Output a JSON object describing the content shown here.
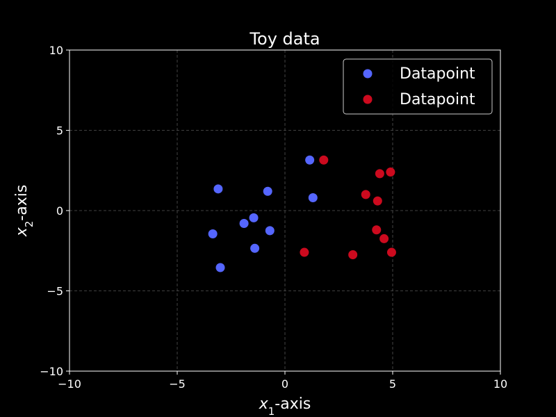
{
  "chart_data": {
    "type": "scatter",
    "title": "Toy data",
    "xlabel": {
      "base": "x",
      "sub": "1",
      "rest": "-axis"
    },
    "ylabel": {
      "base": "x",
      "sub": "2",
      "rest": "-axis"
    },
    "xlim": [
      -10,
      10
    ],
    "ylim": [
      -10,
      10
    ],
    "xticks": [
      -10,
      -5,
      0,
      5,
      10
    ],
    "yticks": [
      -10,
      -5,
      0,
      5,
      10
    ],
    "xtick_labels": [
      "−10",
      "−5",
      "0",
      "5",
      "10"
    ],
    "ytick_labels": [
      "−10",
      "−5",
      "0",
      "5",
      "10"
    ],
    "grid": true,
    "legend_position": "top-right",
    "background": "#000000",
    "series": [
      {
        "name": "Datapoint",
        "color": "#5566ff",
        "points": [
          [
            1.15,
            3.15
          ],
          [
            -3.1,
            1.35
          ],
          [
            -0.8,
            1.2
          ],
          [
            1.3,
            0.8
          ],
          [
            -1.45,
            -0.45
          ],
          [
            -1.9,
            -0.8
          ],
          [
            -0.7,
            -1.25
          ],
          [
            -3.35,
            -1.45
          ],
          [
            -1.4,
            -2.35
          ],
          [
            -3.0,
            -3.55
          ]
        ]
      },
      {
        "name": "Datapoint",
        "color": "#cc0a1e",
        "points": [
          [
            1.8,
            3.15
          ],
          [
            4.4,
            2.3
          ],
          [
            4.9,
            2.4
          ],
          [
            3.75,
            1.0
          ],
          [
            4.3,
            0.6
          ],
          [
            4.25,
            -1.2
          ],
          [
            4.6,
            -1.75
          ],
          [
            4.95,
            -2.6
          ],
          [
            0.9,
            -2.6
          ],
          [
            3.15,
            -2.75
          ]
        ]
      }
    ]
  }
}
